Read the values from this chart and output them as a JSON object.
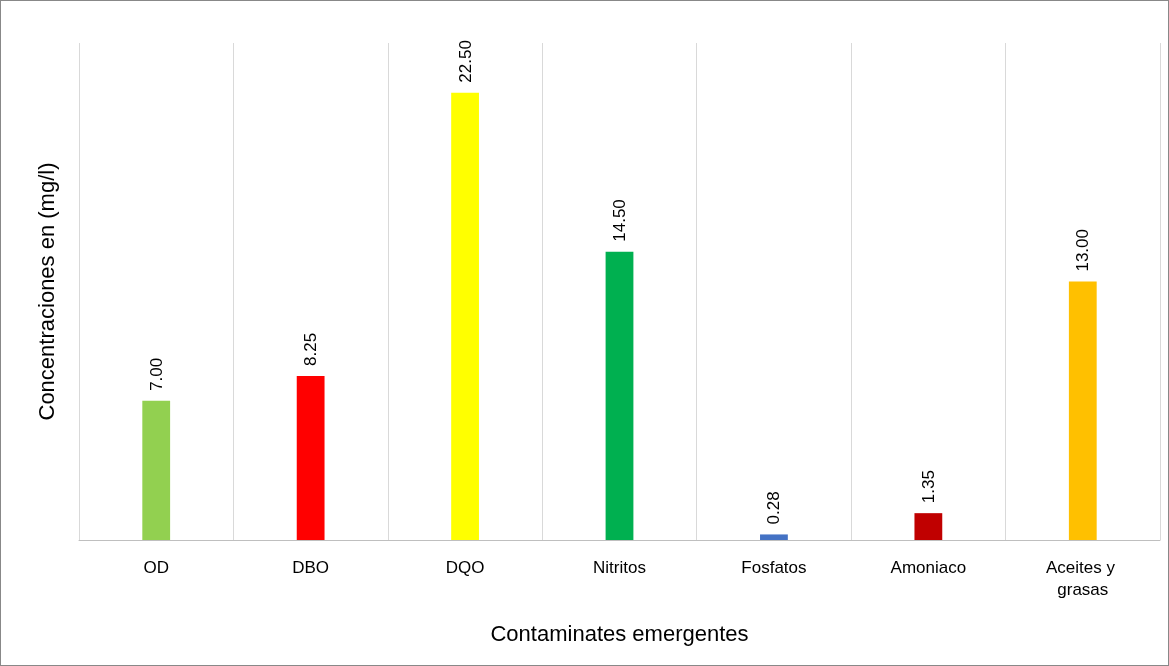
{
  "chart_data": {
    "type": "bar",
    "xlabel": "Contaminates emergentes",
    "ylabel": "Concentraciones en (mg/l)",
    "categories": [
      "OD",
      "DBO",
      "DQO",
      "Nitritos",
      "Fosfatos",
      "Amoniaco",
      "Aceites y grasas"
    ],
    "values": [
      7.0,
      8.25,
      22.5,
      14.5,
      0.28,
      1.35,
      13.0
    ],
    "colors": [
      "#92d050",
      "#ff0000",
      "#ffff00",
      "#00b050",
      "#4472c4",
      "#c00000",
      "#ffc000"
    ],
    "value_labels": [
      "7.00",
      "8.25",
      "22.50",
      "14.50",
      "0.28",
      "1.35",
      "13.00"
    ],
    "ylim": [
      0,
      25
    ],
    "grid": "x",
    "tick_labels": "x"
  }
}
